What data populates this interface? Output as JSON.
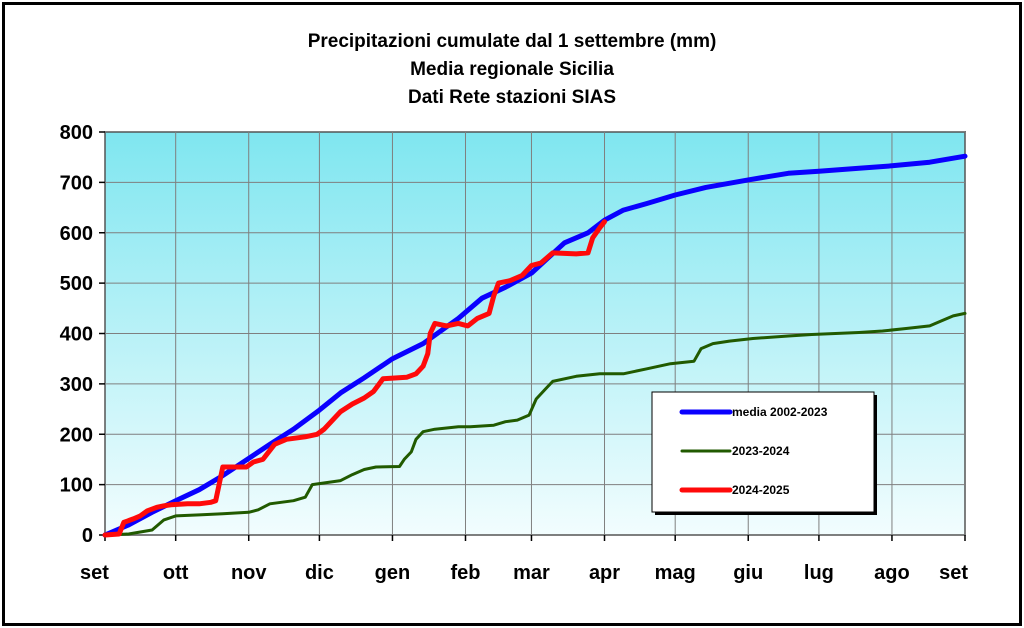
{
  "chart_data": {
    "type": "line",
    "title": "Precipitazioni cumulate dal 1 settembre (mm)",
    "subtitle": [
      "Media regionale Sicilia",
      "Dati Rete stazioni SIAS"
    ],
    "xlabel": "",
    "ylabel": "",
    "x_unit": "days since 1 September",
    "xlim": [
      0,
      365
    ],
    "ylim": [
      0,
      800
    ],
    "y_ticks": [
      0,
      100,
      200,
      300,
      400,
      500,
      600,
      700,
      800
    ],
    "x_ticks": [
      {
        "label": "set",
        "day": 0
      },
      {
        "label": "ott",
        "day": 30
      },
      {
        "label": "nov",
        "day": 61
      },
      {
        "label": "dic",
        "day": 91
      },
      {
        "label": "gen",
        "day": 122
      },
      {
        "label": "feb",
        "day": 153
      },
      {
        "label": "mar",
        "day": 181
      },
      {
        "label": "apr",
        "day": 212
      },
      {
        "label": "mag",
        "day": 242
      },
      {
        "label": "giu",
        "day": 273
      },
      {
        "label": "lug",
        "day": 303
      },
      {
        "label": "ago",
        "day": 334
      },
      {
        "label": "set",
        "day": 365
      }
    ],
    "grid": true,
    "legend_position": "lower-right",
    "series": [
      {
        "name": "media 2002-2023",
        "color": "#0a00ff",
        "points": [
          [
            0,
            0
          ],
          [
            10,
            20
          ],
          [
            20,
            45
          ],
          [
            30,
            68
          ],
          [
            40,
            90
          ],
          [
            50,
            118
          ],
          [
            61,
            152
          ],
          [
            70,
            180
          ],
          [
            80,
            210
          ],
          [
            91,
            248
          ],
          [
            100,
            282
          ],
          [
            110,
            312
          ],
          [
            122,
            350
          ],
          [
            135,
            380
          ],
          [
            150,
            430
          ],
          [
            160,
            470
          ],
          [
            170,
            492
          ],
          [
            181,
            520
          ],
          [
            195,
            580
          ],
          [
            205,
            600
          ],
          [
            212,
            625
          ],
          [
            220,
            645
          ],
          [
            230,
            658
          ],
          [
            242,
            675
          ],
          [
            255,
            690
          ],
          [
            273,
            705
          ],
          [
            290,
            718
          ],
          [
            303,
            722
          ],
          [
            320,
            728
          ],
          [
            334,
            733
          ],
          [
            350,
            740
          ],
          [
            365,
            752
          ]
        ]
      },
      {
        "name": "2023-2024",
        "color": "#215a00",
        "points": [
          [
            0,
            0
          ],
          [
            10,
            2
          ],
          [
            15,
            6
          ],
          [
            20,
            10
          ],
          [
            25,
            30
          ],
          [
            30,
            38
          ],
          [
            40,
            40
          ],
          [
            50,
            42
          ],
          [
            61,
            45
          ],
          [
            65,
            50
          ],
          [
            70,
            62
          ],
          [
            80,
            68
          ],
          [
            85,
            75
          ],
          [
            88,
            100
          ],
          [
            100,
            108
          ],
          [
            105,
            120
          ],
          [
            110,
            130
          ],
          [
            115,
            135
          ],
          [
            125,
            136
          ],
          [
            127,
            150
          ],
          [
            130,
            165
          ],
          [
            132,
            190
          ],
          [
            135,
            205
          ],
          [
            140,
            210
          ],
          [
            150,
            215
          ],
          [
            155,
            215
          ],
          [
            165,
            218
          ],
          [
            170,
            225
          ],
          [
            175,
            228
          ],
          [
            180,
            238
          ],
          [
            183,
            270
          ],
          [
            187,
            290
          ],
          [
            190,
            305
          ],
          [
            200,
            315
          ],
          [
            210,
            320
          ],
          [
            220,
            320
          ],
          [
            230,
            330
          ],
          [
            240,
            340
          ],
          [
            250,
            345
          ],
          [
            253,
            370
          ],
          [
            258,
            380
          ],
          [
            265,
            385
          ],
          [
            275,
            390
          ],
          [
            290,
            395
          ],
          [
            300,
            398
          ],
          [
            320,
            402
          ],
          [
            330,
            405
          ],
          [
            340,
            410
          ],
          [
            350,
            415
          ],
          [
            355,
            425
          ],
          [
            360,
            435
          ],
          [
            365,
            440
          ]
        ]
      },
      {
        "name": "2024-2025",
        "color": "#ff0a0a",
        "points": [
          [
            0,
            0
          ],
          [
            6,
            2
          ],
          [
            8,
            25
          ],
          [
            12,
            32
          ],
          [
            15,
            38
          ],
          [
            18,
            48
          ],
          [
            22,
            55
          ],
          [
            25,
            58
          ],
          [
            28,
            60
          ],
          [
            35,
            62
          ],
          [
            40,
            62
          ],
          [
            45,
            65
          ],
          [
            47,
            68
          ],
          [
            50,
            135
          ],
          [
            60,
            135
          ],
          [
            63,
            145
          ],
          [
            67,
            150
          ],
          [
            72,
            180
          ],
          [
            77,
            190
          ],
          [
            85,
            195
          ],
          [
            90,
            200
          ],
          [
            93,
            210
          ],
          [
            100,
            245
          ],
          [
            105,
            260
          ],
          [
            110,
            272
          ],
          [
            114,
            285
          ],
          [
            118,
            310
          ],
          [
            128,
            313
          ],
          [
            132,
            320
          ],
          [
            135,
            335
          ],
          [
            137,
            360
          ],
          [
            138,
            400
          ],
          [
            140,
            420
          ],
          [
            145,
            415
          ],
          [
            150,
            420
          ],
          [
            154,
            415
          ],
          [
            158,
            430
          ],
          [
            163,
            440
          ],
          [
            165,
            475
          ],
          [
            167,
            500
          ],
          [
            172,
            505
          ],
          [
            177,
            515
          ],
          [
            181,
            535
          ],
          [
            185,
            540
          ],
          [
            190,
            560
          ],
          [
            200,
            558
          ],
          [
            205,
            560
          ],
          [
            207,
            590
          ],
          [
            210,
            610
          ],
          [
            212,
            622
          ]
        ]
      }
    ]
  }
}
